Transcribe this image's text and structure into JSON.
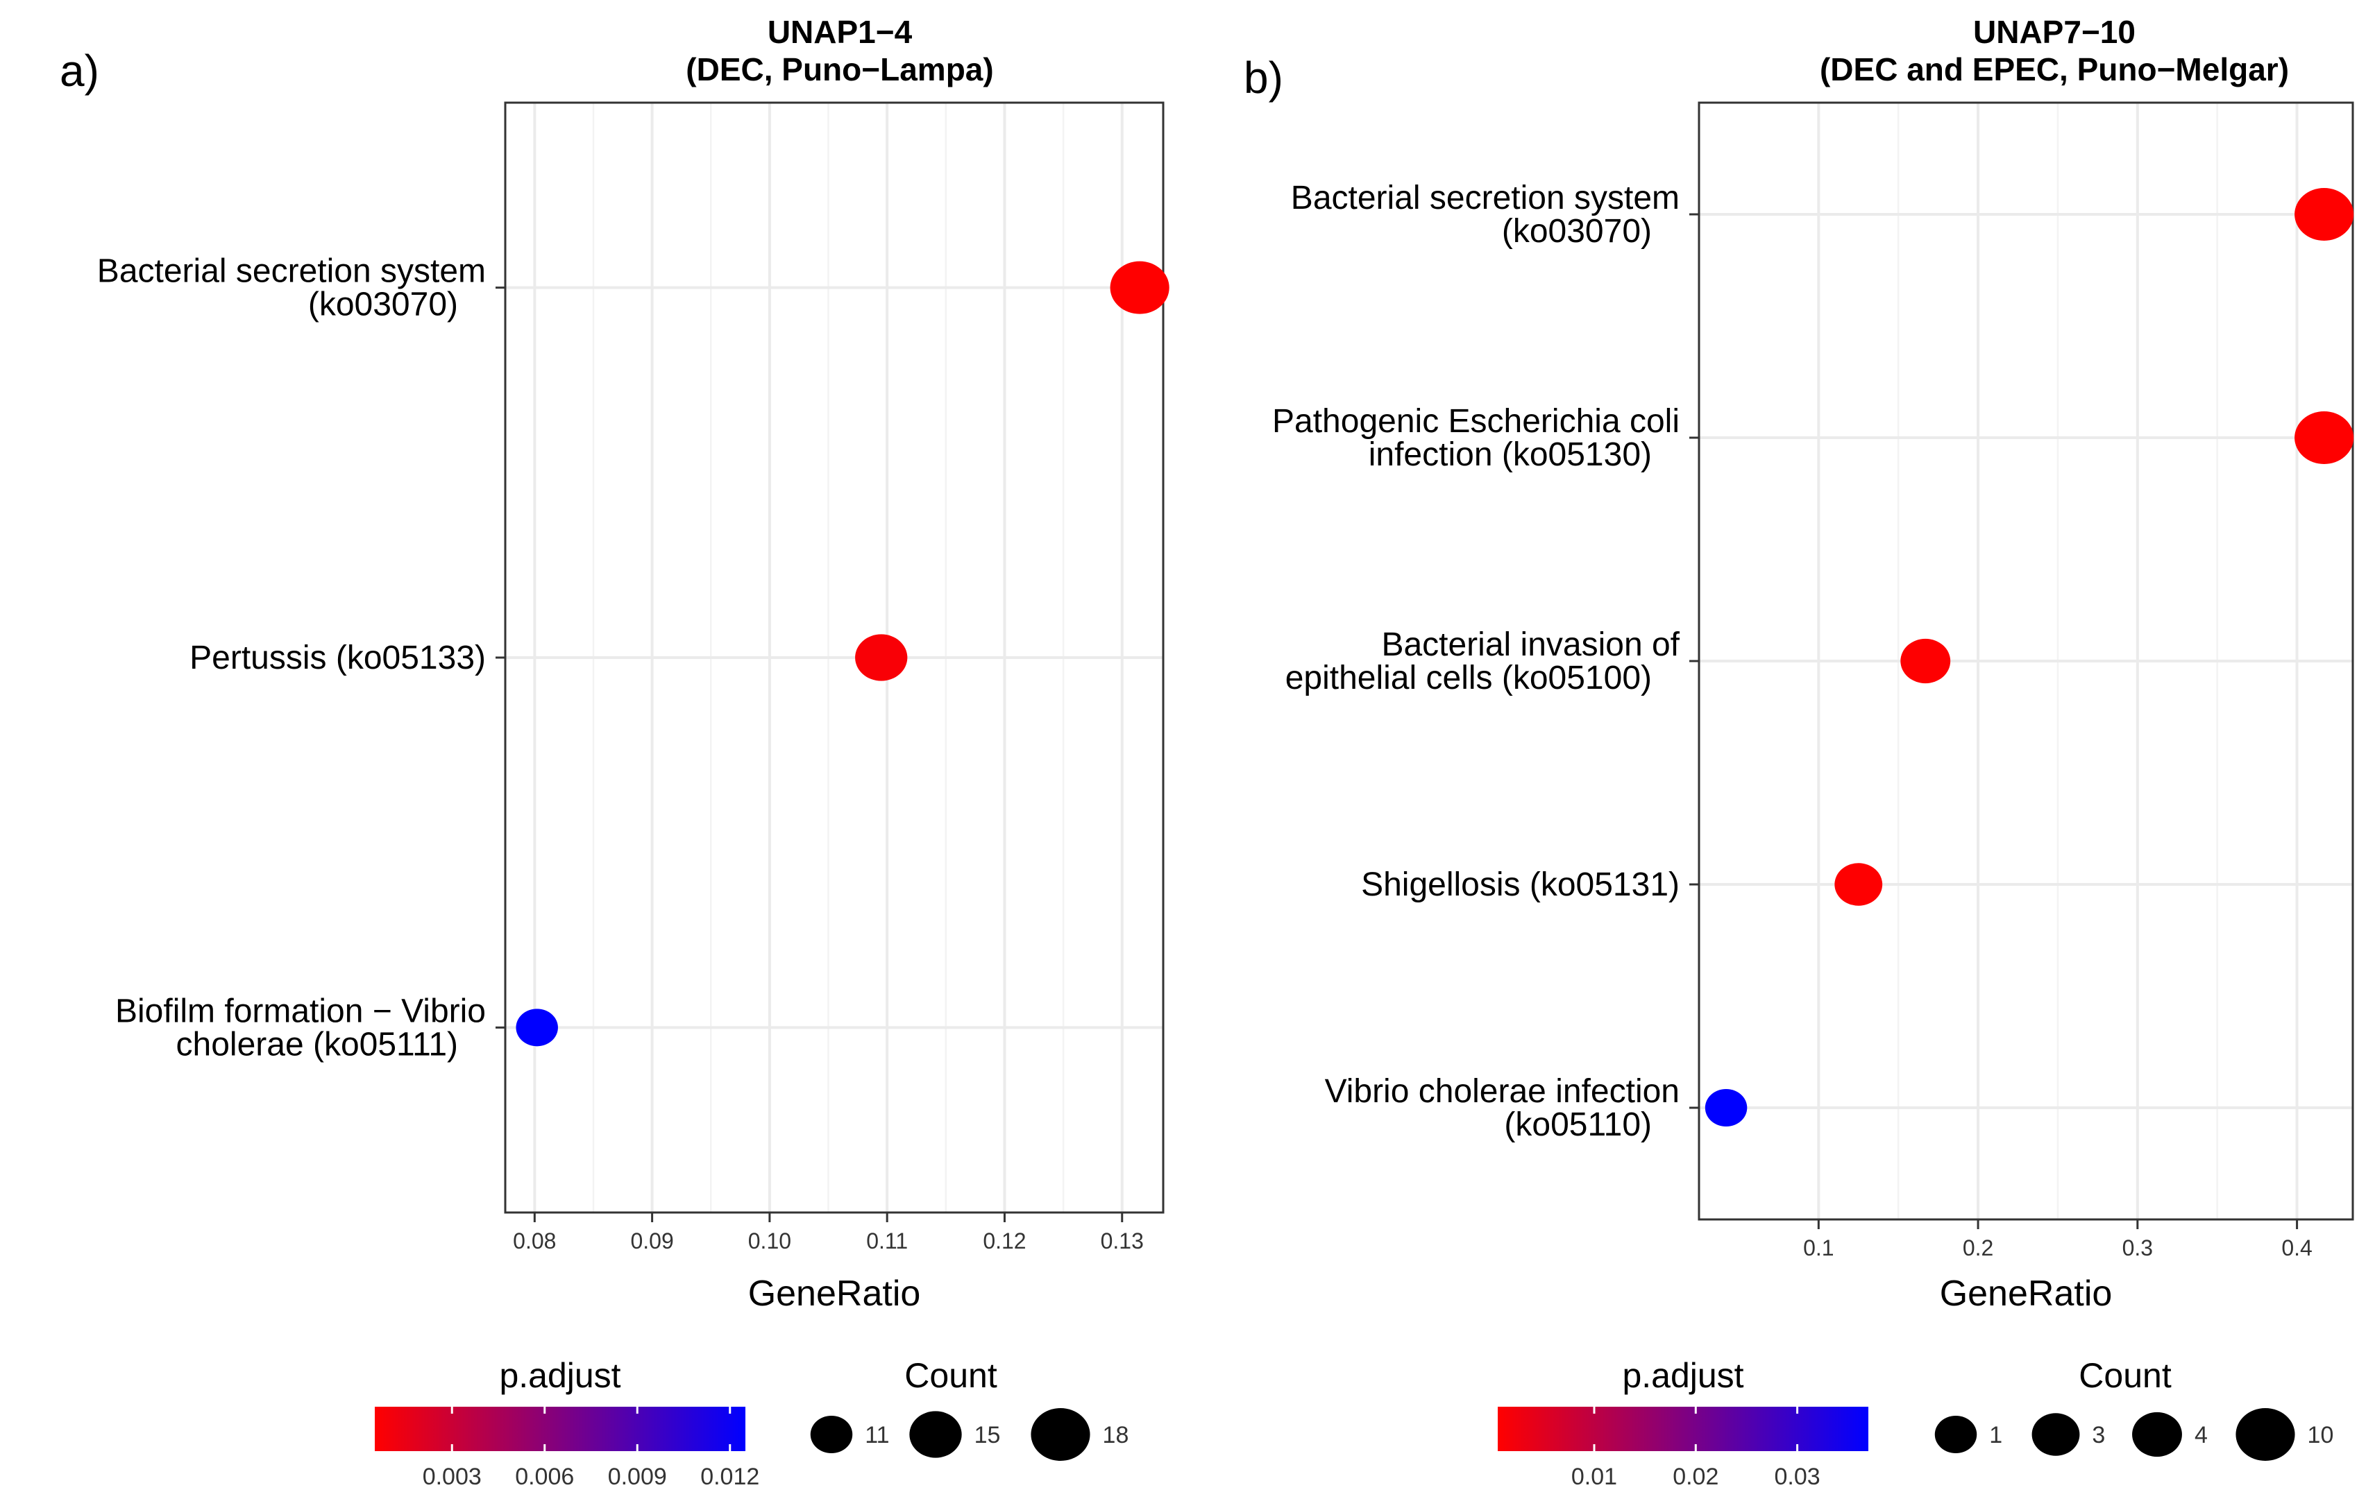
{
  "chart_data": [
    {
      "type": "scatter",
      "panel_label": "a)",
      "title": [
        "UNAP1−4",
        "(DEC, Puno−Lampa)"
      ],
      "xlabel": "GeneRatio",
      "xlim": [
        0.0775,
        0.1335
      ],
      "x_ticks": [
        0.08,
        0.09,
        0.1,
        0.11,
        0.12,
        0.13
      ],
      "x_tick_labels": [
        "0.08",
        "0.09",
        "0.10",
        "0.11",
        "0.12",
        "0.13"
      ],
      "categories": [
        [
          "Bacterial secretion system",
          "(ko03070)"
        ],
        [
          "Pertussis (ko05133)"
        ],
        [
          "Biofilm formation − Vibrio",
          "cholerae (ko05111)"
        ]
      ],
      "points": [
        {
          "x": 0.1315,
          "p_adjust": 0.0005,
          "count": 18
        },
        {
          "x": 0.1095,
          "p_adjust": 0.0008,
          "count": 15
        },
        {
          "x": 0.0802,
          "p_adjust": 0.0125,
          "count": 11
        }
      ],
      "color_legend": {
        "title": "p.adjust",
        "low_color": "#ff0000",
        "high_color": "#0000ff",
        "range": [
          0.0005,
          0.0125
        ],
        "ticks": [
          0.003,
          0.006,
          0.009,
          0.012
        ],
        "tick_labels": [
          "0.003",
          "0.006",
          "0.009",
          "0.012"
        ]
      },
      "size_legend": {
        "title": "Count",
        "values": [
          11,
          15,
          18
        ],
        "labels": [
          "11",
          "15",
          "18"
        ]
      }
    },
    {
      "type": "scatter",
      "panel_label": "b)",
      "title": [
        "UNAP7−10",
        "(DEC and EPEC, Puno−Melgar)"
      ],
      "xlabel": "GeneRatio",
      "xlim": [
        0.025,
        0.435
      ],
      "x_ticks": [
        0.1,
        0.2,
        0.3,
        0.4
      ],
      "x_tick_labels": [
        "0.1",
        "0.2",
        "0.3",
        "0.4"
      ],
      "categories": [
        [
          "Bacterial secretion system",
          "(ko03070)"
        ],
        [
          "Pathogenic Escherichia coli",
          "infection (ko05130)"
        ],
        [
          "Bacterial invasion of",
          "epithelial cells (ko05100)"
        ],
        [
          "Shigellosis (ko05131)"
        ],
        [
          "Vibrio cholerae infection",
          "(ko05110)"
        ]
      ],
      "points": [
        {
          "x": 0.417,
          "p_adjust": 0.0005,
          "count": 10
        },
        {
          "x": 0.417,
          "p_adjust": 0.0005,
          "count": 10
        },
        {
          "x": 0.167,
          "p_adjust": 0.0006,
          "count": 4
        },
        {
          "x": 0.125,
          "p_adjust": 0.0006,
          "count": 3
        },
        {
          "x": 0.042,
          "p_adjust": 0.037,
          "count": 1
        }
      ],
      "color_legend": {
        "title": "p.adjust",
        "low_color": "#ff0000",
        "high_color": "#0000ff",
        "range": [
          0.0005,
          0.037
        ],
        "ticks": [
          0.01,
          0.02,
          0.03
        ],
        "tick_labels": [
          "0.01",
          "0.02",
          "0.03"
        ]
      },
      "size_legend": {
        "title": "Count",
        "values": [
          1,
          3,
          4,
          10
        ],
        "labels": [
          "1",
          "3",
          "4",
          "10"
        ]
      }
    }
  ]
}
